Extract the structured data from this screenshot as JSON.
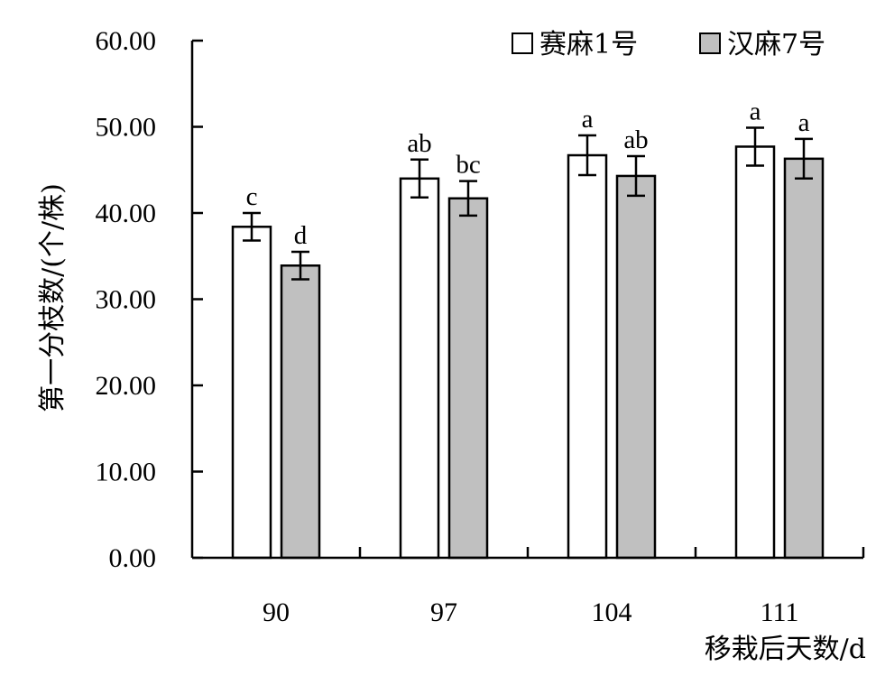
{
  "chart_data": {
    "type": "bar",
    "title": "",
    "xlabel": "移栽后天数/d",
    "ylabel": "第一分枝数/(个/株)",
    "ylim": [
      0,
      60
    ],
    "yticks": [
      "0.00",
      "10.00",
      "20.00",
      "30.00",
      "40.00",
      "50.00",
      "60.00"
    ],
    "categories": [
      "90",
      "97",
      "104",
      "111"
    ],
    "legend_position": "top-right",
    "grid": false,
    "series": [
      {
        "name": "赛麻1号",
        "color": "#ffffff",
        "values": [
          38.4,
          44.0,
          46.7,
          47.7
        ],
        "errors": [
          1.6,
          2.2,
          2.3,
          2.2
        ],
        "labels": [
          "c",
          "ab",
          "a",
          "a"
        ]
      },
      {
        "name": "汉麻7号",
        "color": "#c0c0c0",
        "values": [
          33.9,
          41.7,
          44.3,
          46.3
        ],
        "errors": [
          1.6,
          2.0,
          2.3,
          2.3
        ],
        "labels": [
          "d",
          "bc",
          "ab",
          "a"
        ]
      }
    ]
  }
}
